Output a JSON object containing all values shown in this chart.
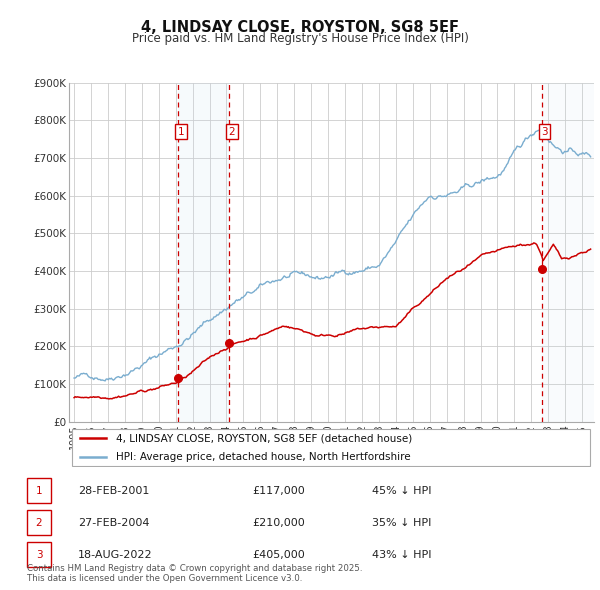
{
  "title": "4, LINDSAY CLOSE, ROYSTON, SG8 5EF",
  "subtitle": "Price paid vs. HM Land Registry's House Price Index (HPI)",
  "title_fontsize": 10.5,
  "subtitle_fontsize": 8.5,
  "background_color": "#ffffff",
  "plot_bg_color": "#ffffff",
  "grid_color": "#cccccc",
  "ylim": [
    0,
    900000
  ],
  "xlim_start": 1994.7,
  "xlim_end": 2025.7,
  "legend_line1": "4, LINDSAY CLOSE, ROYSTON, SG8 5EF (detached house)",
  "legend_line2": "HPI: Average price, detached house, North Hertfordshire",
  "red_color": "#cc0000",
  "blue_color": "#7aadcf",
  "sale_markers": [
    {
      "label": "1",
      "date": 2001.16,
      "price": 117000,
      "hpi_pct": "45% ↓ HPI",
      "date_str": "28-FEB-2001"
    },
    {
      "label": "2",
      "date": 2004.16,
      "price": 210000,
      "hpi_pct": "35% ↓ HPI",
      "date_str": "27-FEB-2004"
    },
    {
      "label": "3",
      "date": 2022.63,
      "price": 405000,
      "hpi_pct": "43% ↓ HPI",
      "date_str": "18-AUG-2022"
    }
  ],
  "footer_text": "Contains HM Land Registry data © Crown copyright and database right 2025.\nThis data is licensed under the Open Government Licence v3.0.",
  "ytick_labels": [
    "£0",
    "£100K",
    "£200K",
    "£300K",
    "£400K",
    "£500K",
    "£600K",
    "£700K",
    "£800K",
    "£900K"
  ],
  "ytick_values": [
    0,
    100000,
    200000,
    300000,
    400000,
    500000,
    600000,
    700000,
    800000,
    900000
  ]
}
